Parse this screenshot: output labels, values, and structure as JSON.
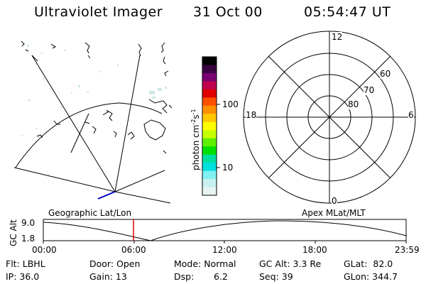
{
  "header": {
    "title": "Ultraviolet Imager",
    "date": "31 Oct 00",
    "time": "05:54:47 UT"
  },
  "colorbar": {
    "label_main": "photon cm",
    "label_sup1": "-2",
    "label_mid": "s",
    "label_sup2": "-1",
    "tick_100": "100",
    "tick_10": "10",
    "colors": [
      "#000000",
      "#3a0040",
      "#7a0070",
      "#c00050",
      "#e00000",
      "#ff5000",
      "#ff9000",
      "#ffc800",
      "#ffff00",
      "#c8ff00",
      "#60f000",
      "#00e000",
      "#00e0a0",
      "#00e0e0",
      "#80f0f0",
      "#c8f0f0",
      "#e6f4f4"
    ]
  },
  "polar": {
    "label_top": "12",
    "label_bottom": "0",
    "label_left": "18",
    "label_right": "6",
    "ring_60": "60",
    "ring_70": "70",
    "ring_80": "80"
  },
  "timeline": {
    "left_label": "Geographic Lat/Lon",
    "right_label": "Apex MLat/MLT",
    "axis_title": "GC Alt",
    "y_top": "9.0",
    "y_bottom": "1.8",
    "x_ticks": [
      "00:00",
      "06:00",
      "12:00",
      "18:00",
      "23:59"
    ],
    "current_time_color": "#e00000"
  },
  "info": {
    "flt": "Flt: LBHL",
    "ip": "IP: 36.0",
    "door": "Door: Open",
    "gain": "Gain: 13",
    "mode": "Mode: Normal",
    "dsp_label": "Dsp:",
    "dsp_value": "6.2",
    "gcalt": "GC Alt: 3.3 Re",
    "seq": "Seq: 39",
    "glat": "GLat:  82.0",
    "glon": "GLon: 344.7"
  }
}
